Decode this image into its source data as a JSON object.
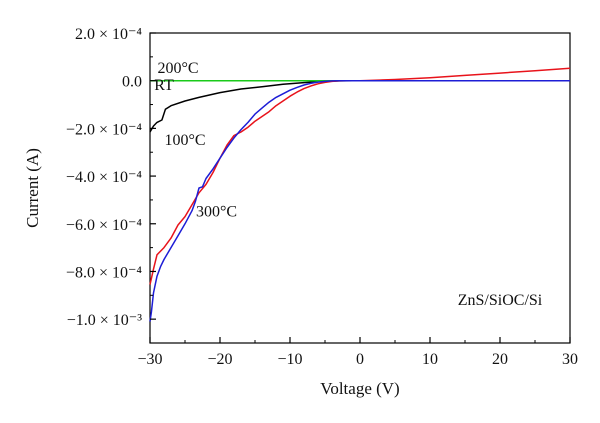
{
  "chart_data": {
    "type": "line",
    "title": "",
    "xlabel": "Voltage (V)",
    "ylabel": "Current (A)",
    "xlim": [
      -30,
      30
    ],
    "ylim": [
      -0.0011,
      0.0002
    ],
    "x_ticks": [
      -30,
      -20,
      -10,
      0,
      10,
      20,
      30
    ],
    "x_tick_labels": [
      "−30",
      "−20",
      "−10",
      "0",
      "10",
      "20",
      "30"
    ],
    "y_ticks": [
      0.0002,
      0.0,
      -0.0002,
      -0.0004,
      -0.0006,
      -0.0008,
      -0.001
    ],
    "y_tick_labels": [
      "2.0 × 10⁻⁴",
      "0.0",
      "−2.0 × 10⁻⁴",
      "−4.0 × 10⁻⁴",
      "−6.0 × 10⁻⁴",
      "−8.0 × 10⁻⁴",
      "−1.0 × 10⁻³"
    ],
    "grid": false,
    "legend": "none",
    "annotation": "ZnS/SiOC/Si",
    "series": [
      {
        "name": "RT",
        "color": "#000000",
        "x": [
          -30,
          -29.5,
          -29,
          -28.3,
          -27.8,
          -27,
          -25,
          -23,
          -20,
          -17,
          -14,
          -11,
          -8,
          -5,
          -3,
          -1,
          0,
          30
        ],
        "y": [
          -0.000215,
          -0.00019,
          -0.000175,
          -0.000165,
          -0.00012,
          -0.000105,
          -8.5e-05,
          -7e-05,
          -5e-05,
          -3.5e-05,
          -2.5e-05,
          -1.5e-05,
          -8e-06,
          -3e-06,
          -1e-06,
          0,
          0,
          0
        ]
      },
      {
        "name": "100°C",
        "color": "#e8131b",
        "x": [
          -30,
          -29.5,
          -29,
          -28,
          -27,
          -26,
          -25,
          -24,
          -23,
          -22,
          -21,
          -20,
          -19,
          -18,
          -17,
          -16,
          -15,
          -14,
          -13,
          -12,
          -11,
          -10,
          -9,
          -8,
          -7,
          -6,
          -5,
          -4,
          -3,
          -2,
          -1,
          0,
          5,
          10,
          15,
          20,
          25,
          30
        ],
        "y": [
          -0.000855,
          -0.00079,
          -0.00073,
          -0.0007,
          -0.00066,
          -0.000605,
          -0.00057,
          -0.00052,
          -0.00047,
          -0.000435,
          -0.000385,
          -0.000325,
          -0.00027,
          -0.00023,
          -0.000215,
          -0.000195,
          -0.00017,
          -0.00015,
          -0.00013,
          -0.000105,
          -8.5e-05,
          -6.5e-05,
          -4.8e-05,
          -3.3e-05,
          -2.2e-05,
          -1.3e-05,
          -7e-06,
          -3e-06,
          -1e-06,
          0,
          0,
          0,
          5e-06,
          1.2e-05,
          2.2e-05,
          3.2e-05,
          4.2e-05,
          5.2e-05
        ]
      },
      {
        "name": "200°C",
        "color": "#1aca1a",
        "x": [
          -30,
          30
        ],
        "y": [
          0,
          0
        ]
      },
      {
        "name": "300°C",
        "color": "#1d1dd6",
        "x": [
          -30,
          -29.8,
          -29.5,
          -29,
          -28.5,
          -28,
          -27,
          -26,
          -25,
          -24,
          -23.5,
          -23,
          -22.5,
          -22,
          -21,
          -20,
          -19,
          -18,
          -17,
          -16,
          -15,
          -14,
          -13,
          -12,
          -11,
          -10,
          -9,
          -8,
          -7,
          -6,
          -5,
          -4,
          -3,
          -2,
          -1,
          0,
          30
        ],
        "y": [
          -0.00101,
          -0.00097,
          -0.00089,
          -0.00082,
          -0.00078,
          -0.00075,
          -0.0007,
          -0.00065,
          -0.0006,
          -0.000545,
          -0.000505,
          -0.00045,
          -0.000445,
          -0.00041,
          -0.00037,
          -0.000325,
          -0.00028,
          -0.00024,
          -0.000205,
          -0.000175,
          -0.00014,
          -0.000115,
          -9e-05,
          -7e-05,
          -5.5e-05,
          -4e-05,
          -2.8e-05,
          -1.8e-05,
          -1.1e-05,
          -6e-06,
          -3e-06,
          -1e-06,
          0,
          0,
          0,
          0,
          0
        ]
      }
    ],
    "curve_labels": [
      {
        "series": "200°C",
        "text": "200°C",
        "x": -26.0,
        "y": 3.2e-05
      },
      {
        "series": "RT",
        "text": "RT",
        "x": -28.0,
        "y": -4e-05
      },
      {
        "series": "100°C",
        "text": "100°C",
        "x": -25.0,
        "y": -0.00027
      },
      {
        "series": "300°C",
        "text": "300°C",
        "x": -20.5,
        "y": -0.00057
      }
    ],
    "annotation_pos": {
      "x": 20.0,
      "y": -0.00094
    }
  }
}
